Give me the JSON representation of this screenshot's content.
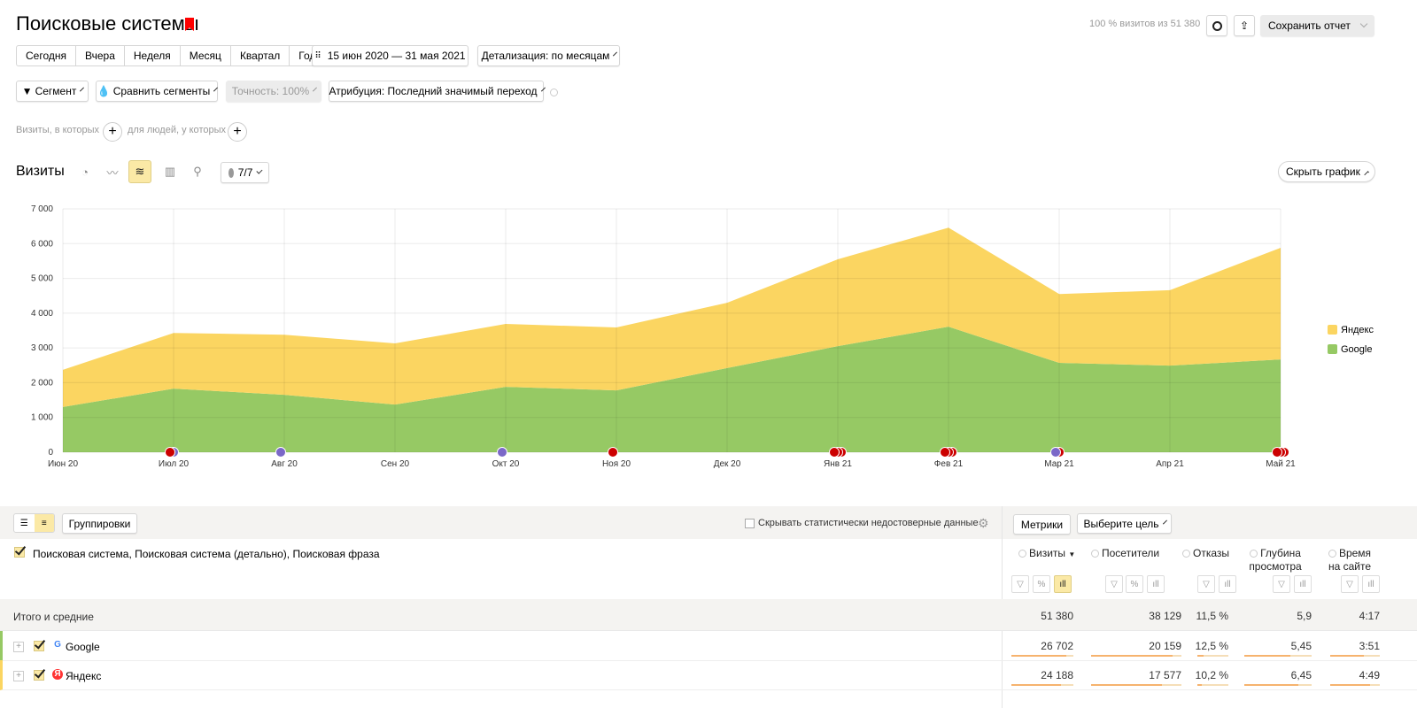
{
  "header": {
    "title": "Поисковые системы",
    "visits_info": "100 % визитов из 51 380",
    "save_label": "Сохранить отчет"
  },
  "periods": [
    "Сегодня",
    "Вчера",
    "Неделя",
    "Месяц",
    "Квартал",
    "Год"
  ],
  "date_range": "15 июн 2020 — 31 мая 2021",
  "detail": "Детализация: по месяцам",
  "filters": {
    "segment": "Сегмент",
    "compare": "Сравнить сегменты",
    "accuracy": "Точность: 100%",
    "attribution": "Атрибуция: Последний значимый переход"
  },
  "conditions": {
    "visits": "Визиты, в которых",
    "people": "для людей, у которых"
  },
  "chart_header": {
    "title": "Визиты",
    "notes": "7/7",
    "hide": "Скрыть график"
  },
  "chart_data": {
    "type": "area",
    "stacked": true,
    "categories": [
      "Июн 20",
      "Июл 20",
      "Авг 20",
      "Сен 20",
      "Окт 20",
      "Ноя 20",
      "Дек 20",
      "Янв 21",
      "Фев 21",
      "Мар 21",
      "Апр 21",
      "Май 21"
    ],
    "series": [
      {
        "name": "Google",
        "color": "#96c964",
        "values": [
          1300,
          1830,
          1650,
          1370,
          1880,
          1780,
          2420,
          3050,
          3610,
          2570,
          2490,
          2670
        ]
      },
      {
        "name": "Яндекс",
        "color": "#fbd561",
        "values": [
          1070,
          1600,
          1730,
          1760,
          1810,
          1810,
          1880,
          2500,
          2850,
          1980,
          2170,
          3210
        ]
      }
    ],
    "yticks": [
      "0",
      "1 000",
      "2 000",
      "3 000",
      "4 000",
      "5 000",
      "6 000",
      "7 000"
    ],
    "ylim": [
      0,
      7000
    ],
    "grid": true,
    "legend": "right",
    "annotations": [
      [],
      [
        "#cc0000",
        "#7b68c8"
      ],
      [
        "#7b68c8"
      ],
      [],
      [
        "#7b68c8"
      ],
      [
        "#cc0000"
      ],
      [],
      [
        "#cc0000",
        "#cc0000",
        "#cc0000"
      ],
      [
        "#cc0000",
        "#cc0000",
        "#cc0000"
      ],
      [
        "#7b68c8",
        "#cc0000"
      ],
      [],
      [
        "#cc0000",
        "#cc0000",
        "#cc0000"
      ]
    ]
  },
  "table_toolbar": {
    "groupings": "Группировки",
    "hide_unreliable": "Скрывать статистически недостоверные данные",
    "metrics": "Метрики",
    "goal": "Выберите цель"
  },
  "table": {
    "dimension_header": "Поисковая система, Поисковая система (детально), Поисковая фраза",
    "columns": [
      "Визиты",
      "Посетители",
      "Отказы",
      "Глубина просмотра",
      "Время на сайте"
    ],
    "totals": {
      "label": "Итого и средние",
      "values": [
        "51 380",
        "38 129",
        "11,5 %",
        "5,9",
        "4:17"
      ]
    },
    "rows": [
      {
        "label": "Google",
        "color": "#96c964",
        "values": [
          "26 702",
          "20 159",
          "12,5 %",
          "5,45",
          "3:51"
        ],
        "bars": [
          0.52,
          0.53,
          0.11,
          0.4,
          0.4
        ]
      },
      {
        "label": "Яндекс",
        "color": "#fbd561",
        "values": [
          "24 188",
          "17 577",
          "10,2 %",
          "6,45",
          "4:49"
        ],
        "bars": [
          0.47,
          0.46,
          0.09,
          0.47,
          0.47
        ]
      }
    ]
  }
}
